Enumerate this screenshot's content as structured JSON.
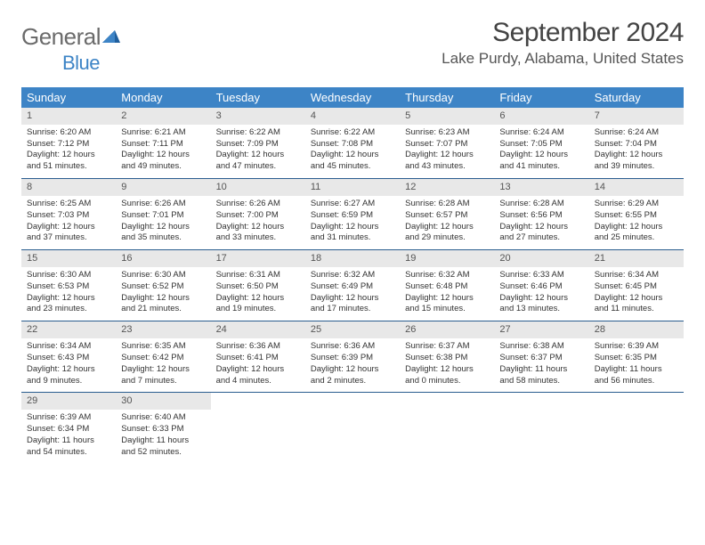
{
  "logo": {
    "text1": "General",
    "text2": "Blue"
  },
  "title": "September 2024",
  "location": "Lake Purdy, Alabama, United States",
  "colors": {
    "header_bg": "#3d84c6",
    "header_text": "#ffffff",
    "daynum_bg": "#e8e8e8",
    "rule": "#2a5d8f",
    "body_text": "#333333",
    "logo_gray": "#6b6b6b",
    "logo_blue": "#3d84c6"
  },
  "day_names": [
    "Sunday",
    "Monday",
    "Tuesday",
    "Wednesday",
    "Thursday",
    "Friday",
    "Saturday"
  ],
  "weeks": [
    [
      {
        "n": "1",
        "sr": "6:20 AM",
        "ss": "7:12 PM",
        "dl": "12 hours and 51 minutes."
      },
      {
        "n": "2",
        "sr": "6:21 AM",
        "ss": "7:11 PM",
        "dl": "12 hours and 49 minutes."
      },
      {
        "n": "3",
        "sr": "6:22 AM",
        "ss": "7:09 PM",
        "dl": "12 hours and 47 minutes."
      },
      {
        "n": "4",
        "sr": "6:22 AM",
        "ss": "7:08 PM",
        "dl": "12 hours and 45 minutes."
      },
      {
        "n": "5",
        "sr": "6:23 AM",
        "ss": "7:07 PM",
        "dl": "12 hours and 43 minutes."
      },
      {
        "n": "6",
        "sr": "6:24 AM",
        "ss": "7:05 PM",
        "dl": "12 hours and 41 minutes."
      },
      {
        "n": "7",
        "sr": "6:24 AM",
        "ss": "7:04 PM",
        "dl": "12 hours and 39 minutes."
      }
    ],
    [
      {
        "n": "8",
        "sr": "6:25 AM",
        "ss": "7:03 PM",
        "dl": "12 hours and 37 minutes."
      },
      {
        "n": "9",
        "sr": "6:26 AM",
        "ss": "7:01 PM",
        "dl": "12 hours and 35 minutes."
      },
      {
        "n": "10",
        "sr": "6:26 AM",
        "ss": "7:00 PM",
        "dl": "12 hours and 33 minutes."
      },
      {
        "n": "11",
        "sr": "6:27 AM",
        "ss": "6:59 PM",
        "dl": "12 hours and 31 minutes."
      },
      {
        "n": "12",
        "sr": "6:28 AM",
        "ss": "6:57 PM",
        "dl": "12 hours and 29 minutes."
      },
      {
        "n": "13",
        "sr": "6:28 AM",
        "ss": "6:56 PM",
        "dl": "12 hours and 27 minutes."
      },
      {
        "n": "14",
        "sr": "6:29 AM",
        "ss": "6:55 PM",
        "dl": "12 hours and 25 minutes."
      }
    ],
    [
      {
        "n": "15",
        "sr": "6:30 AM",
        "ss": "6:53 PM",
        "dl": "12 hours and 23 minutes."
      },
      {
        "n": "16",
        "sr": "6:30 AM",
        "ss": "6:52 PM",
        "dl": "12 hours and 21 minutes."
      },
      {
        "n": "17",
        "sr": "6:31 AM",
        "ss": "6:50 PM",
        "dl": "12 hours and 19 minutes."
      },
      {
        "n": "18",
        "sr": "6:32 AM",
        "ss": "6:49 PM",
        "dl": "12 hours and 17 minutes."
      },
      {
        "n": "19",
        "sr": "6:32 AM",
        "ss": "6:48 PM",
        "dl": "12 hours and 15 minutes."
      },
      {
        "n": "20",
        "sr": "6:33 AM",
        "ss": "6:46 PM",
        "dl": "12 hours and 13 minutes."
      },
      {
        "n": "21",
        "sr": "6:34 AM",
        "ss": "6:45 PM",
        "dl": "12 hours and 11 minutes."
      }
    ],
    [
      {
        "n": "22",
        "sr": "6:34 AM",
        "ss": "6:43 PM",
        "dl": "12 hours and 9 minutes."
      },
      {
        "n": "23",
        "sr": "6:35 AM",
        "ss": "6:42 PM",
        "dl": "12 hours and 7 minutes."
      },
      {
        "n": "24",
        "sr": "6:36 AM",
        "ss": "6:41 PM",
        "dl": "12 hours and 4 minutes."
      },
      {
        "n": "25",
        "sr": "6:36 AM",
        "ss": "6:39 PM",
        "dl": "12 hours and 2 minutes."
      },
      {
        "n": "26",
        "sr": "6:37 AM",
        "ss": "6:38 PM",
        "dl": "12 hours and 0 minutes."
      },
      {
        "n": "27",
        "sr": "6:38 AM",
        "ss": "6:37 PM",
        "dl": "11 hours and 58 minutes."
      },
      {
        "n": "28",
        "sr": "6:39 AM",
        "ss": "6:35 PM",
        "dl": "11 hours and 56 minutes."
      }
    ],
    [
      {
        "n": "29",
        "sr": "6:39 AM",
        "ss": "6:34 PM",
        "dl": "11 hours and 54 minutes."
      },
      {
        "n": "30",
        "sr": "6:40 AM",
        "ss": "6:33 PM",
        "dl": "11 hours and 52 minutes."
      },
      null,
      null,
      null,
      null,
      null
    ]
  ],
  "labels": {
    "sunrise": "Sunrise:",
    "sunset": "Sunset:",
    "daylight": "Daylight:"
  }
}
